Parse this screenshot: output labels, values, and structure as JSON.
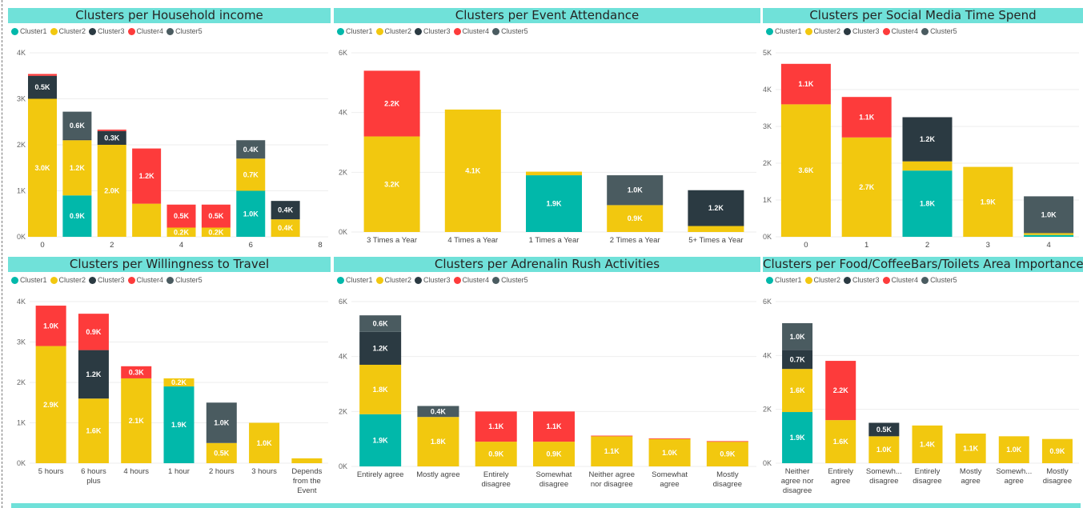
{
  "colors": {
    "Cluster1": "#01b8aa",
    "Cluster2": "#f2c80f",
    "Cluster3": "#2b3a42",
    "Cluster4": "#fd3b3b",
    "Cluster5": "#4a5b60",
    "title_bg": "#70e1d9"
  },
  "chart_data": [
    {
      "title": "Clusters per Household income",
      "type": "bar",
      "x_axis": "numeric",
      "categories": [
        0,
        1,
        2,
        3,
        4,
        5,
        6,
        7
      ],
      "x_ticks": [
        0,
        2,
        4,
        6,
        8
      ],
      "xlim": [
        0,
        8
      ],
      "ylim": [
        0,
        4000
      ],
      "y_ticks": [
        0,
        1000,
        2000,
        3000,
        4000
      ],
      "y_tick_labels": [
        "0K",
        "1K",
        "2K",
        "3K",
        "4K"
      ],
      "series": [
        {
          "name": "Cluster1",
          "values": [
            0,
            900,
            0,
            0,
            0,
            0,
            1000,
            0
          ]
        },
        {
          "name": "Cluster2",
          "values": [
            3000,
            1200,
            2000,
            720,
            200,
            200,
            700,
            380
          ]
        },
        {
          "name": "Cluster3",
          "values": [
            500,
            20,
            300,
            0,
            0,
            0,
            0,
            400
          ]
        },
        {
          "name": "Cluster4",
          "values": [
            40,
            0,
            30,
            1200,
            500,
            500,
            0,
            0
          ]
        },
        {
          "name": "Cluster5",
          "values": [
            0,
            600,
            0,
            0,
            0,
            0,
            400,
            0
          ]
        }
      ],
      "data_labels": [
        {
          "cat": 0,
          "series": "Cluster2",
          "text": "3.0K"
        },
        {
          "cat": 0,
          "series": "Cluster3",
          "text": "0.5K"
        },
        {
          "cat": 1,
          "series": "Cluster1",
          "text": "0.9K"
        },
        {
          "cat": 1,
          "series": "Cluster2",
          "text": "1.2K"
        },
        {
          "cat": 1,
          "series": "Cluster5",
          "text": "0.6K"
        },
        {
          "cat": 2,
          "series": "Cluster2",
          "text": "2.0K"
        },
        {
          "cat": 2,
          "series": "Cluster3",
          "text": "0.3K"
        },
        {
          "cat": 3,
          "series": "Cluster4",
          "text": "1.2K"
        },
        {
          "cat": 4,
          "series": "Cluster2",
          "text": "0.2K"
        },
        {
          "cat": 4,
          "series": "Cluster4",
          "text": "0.5K"
        },
        {
          "cat": 5,
          "series": "Cluster2",
          "text": "0.2K"
        },
        {
          "cat": 5,
          "series": "Cluster4",
          "text": "0.5K"
        },
        {
          "cat": 6,
          "series": "Cluster1",
          "text": "1.0K"
        },
        {
          "cat": 6,
          "series": "Cluster2",
          "text": "0.7K"
        },
        {
          "cat": 6,
          "series": "Cluster5",
          "text": "0.4K"
        },
        {
          "cat": 7,
          "series": "Cluster2",
          "text": "0.4K"
        },
        {
          "cat": 7,
          "series": "Cluster3",
          "text": "0.4K"
        }
      ]
    },
    {
      "title": "Clusters per Event Attendance",
      "type": "bar",
      "categories": [
        "3 Times a Year",
        "4 Times a Year",
        "1 Times a Year",
        "2 Times a Year",
        "5+ Times a Year"
      ],
      "ylim": [
        0,
        6000
      ],
      "y_ticks": [
        0,
        2000,
        4000,
        6000
      ],
      "y_tick_labels": [
        "0K",
        "2K",
        "4K",
        "6K"
      ],
      "series": [
        {
          "name": "Cluster1",
          "values": [
            0,
            0,
            1900,
            0,
            0
          ]
        },
        {
          "name": "Cluster2",
          "values": [
            3200,
            4100,
            120,
            900,
            200
          ]
        },
        {
          "name": "Cluster3",
          "values": [
            0,
            0,
            0,
            0,
            1200
          ]
        },
        {
          "name": "Cluster4",
          "values": [
            2200,
            0,
            0,
            0,
            0
          ]
        },
        {
          "name": "Cluster5",
          "values": [
            0,
            0,
            0,
            1000,
            0
          ]
        }
      ],
      "data_labels": [
        {
          "cat": 0,
          "series": "Cluster2",
          "text": "3.2K"
        },
        {
          "cat": 0,
          "series": "Cluster4",
          "text": "2.2K"
        },
        {
          "cat": 1,
          "series": "Cluster2",
          "text": "4.1K"
        },
        {
          "cat": 2,
          "series": "Cluster1",
          "text": "1.9K"
        },
        {
          "cat": 3,
          "series": "Cluster2",
          "text": "0.9K"
        },
        {
          "cat": 3,
          "series": "Cluster5",
          "text": "1.0K"
        },
        {
          "cat": 4,
          "series": "Cluster3",
          "text": "1.2K"
        }
      ]
    },
    {
      "title": "Clusters per Social Media Time Spend",
      "type": "bar",
      "categories": [
        "0",
        "1",
        "2",
        "3",
        "4"
      ],
      "ylim": [
        0,
        5000
      ],
      "y_ticks": [
        0,
        1000,
        2000,
        3000,
        4000,
        5000
      ],
      "y_tick_labels": [
        "0K",
        "1K",
        "2K",
        "3K",
        "4K",
        "5K"
      ],
      "series": [
        {
          "name": "Cluster1",
          "values": [
            0,
            0,
            1800,
            0,
            50
          ]
        },
        {
          "name": "Cluster2",
          "values": [
            3600,
            2700,
            250,
            1900,
            50
          ]
        },
        {
          "name": "Cluster3",
          "values": [
            0,
            0,
            1200,
            0,
            0
          ]
        },
        {
          "name": "Cluster4",
          "values": [
            1100,
            1100,
            0,
            0,
            0
          ]
        },
        {
          "name": "Cluster5",
          "values": [
            0,
            0,
            0,
            0,
            1000
          ]
        }
      ],
      "data_labels": [
        {
          "cat": 0,
          "series": "Cluster2",
          "text": "3.6K"
        },
        {
          "cat": 0,
          "series": "Cluster4",
          "text": "1.1K"
        },
        {
          "cat": 1,
          "series": "Cluster2",
          "text": "2.7K"
        },
        {
          "cat": 1,
          "series": "Cluster4",
          "text": "1.1K"
        },
        {
          "cat": 2,
          "series": "Cluster1",
          "text": "1.8K"
        },
        {
          "cat": 2,
          "series": "Cluster3",
          "text": "1.2K"
        },
        {
          "cat": 3,
          "series": "Cluster2",
          "text": "1.9K"
        },
        {
          "cat": 4,
          "series": "Cluster5",
          "text": "1.0K"
        }
      ]
    },
    {
      "title": "Clusters per Willingness to Travel",
      "type": "bar",
      "categories": [
        "5 hours",
        "6 hours plus",
        "4 hours",
        "1 hour",
        "2 hours",
        "3 hours",
        "Depends from the Event"
      ],
      "x_tick_lines": [
        [
          "5 hours"
        ],
        [
          "6 hours",
          "plus"
        ],
        [
          "4 hours"
        ],
        [
          "1 hour"
        ],
        [
          "2 hours"
        ],
        [
          "3 hours"
        ],
        [
          "Depends",
          "from the",
          "Event"
        ]
      ],
      "ylim": [
        0,
        4000
      ],
      "y_ticks": [
        0,
        1000,
        2000,
        3000,
        4000
      ],
      "y_tick_labels": [
        "0K",
        "1K",
        "2K",
        "3K",
        "4K"
      ],
      "series": [
        {
          "name": "Cluster1",
          "values": [
            0,
            0,
            0,
            1900,
            0,
            0,
            0
          ]
        },
        {
          "name": "Cluster2",
          "values": [
            2900,
            1600,
            2100,
            200,
            500,
            1000,
            120
          ]
        },
        {
          "name": "Cluster3",
          "values": [
            0,
            1200,
            0,
            0,
            0,
            0,
            0
          ]
        },
        {
          "name": "Cluster4",
          "values": [
            1000,
            900,
            300,
            0,
            0,
            0,
            0
          ]
        },
        {
          "name": "Cluster5",
          "values": [
            0,
            0,
            0,
            0,
            1000,
            0,
            0
          ]
        }
      ],
      "data_labels": [
        {
          "cat": 0,
          "series": "Cluster2",
          "text": "2.9K"
        },
        {
          "cat": 0,
          "series": "Cluster4",
          "text": "1.0K"
        },
        {
          "cat": 1,
          "series": "Cluster2",
          "text": "1.6K"
        },
        {
          "cat": 1,
          "series": "Cluster3",
          "text": "1.2K"
        },
        {
          "cat": 1,
          "series": "Cluster4",
          "text": "0.9K"
        },
        {
          "cat": 2,
          "series": "Cluster2",
          "text": "2.1K"
        },
        {
          "cat": 2,
          "series": "Cluster4",
          "text": "0.3K"
        },
        {
          "cat": 3,
          "series": "Cluster1",
          "text": "1.9K"
        },
        {
          "cat": 3,
          "series": "Cluster2",
          "text": "0.2K"
        },
        {
          "cat": 4,
          "series": "Cluster2",
          "text": "0.5K"
        },
        {
          "cat": 4,
          "series": "Cluster5",
          "text": "1.0K"
        },
        {
          "cat": 5,
          "series": "Cluster2",
          "text": "1.0K"
        }
      ]
    },
    {
      "title": "Clusters per Adrenalin Rush Activities",
      "type": "bar",
      "categories": [
        "Entirely agree",
        "Mostly agree",
        "Entirely disagree",
        "Somewhat disagree",
        "Neither agree nor disagree",
        "Somewhat agree",
        "Mostly disagree"
      ],
      "x_tick_lines": [
        [
          "Entirely agree"
        ],
        [
          "Mostly agree"
        ],
        [
          "Entirely",
          "disagree"
        ],
        [
          "Somewhat",
          "disagree"
        ],
        [
          "Neither agree",
          "nor disagree"
        ],
        [
          "Somewhat",
          "agree"
        ],
        [
          "Mostly",
          "disagree"
        ]
      ],
      "ylim": [
        0,
        6000
      ],
      "y_ticks": [
        0,
        2000,
        4000,
        6000
      ],
      "y_tick_labels": [
        "0K",
        "2K",
        "4K",
        "6K"
      ],
      "series": [
        {
          "name": "Cluster1",
          "values": [
            1900,
            0,
            0,
            0,
            0,
            0,
            0
          ]
        },
        {
          "name": "Cluster2",
          "values": [
            1800,
            1800,
            900,
            900,
            1100,
            1000,
            900
          ]
        },
        {
          "name": "Cluster3",
          "values": [
            1200,
            0,
            0,
            0,
            0,
            0,
            0
          ]
        },
        {
          "name": "Cluster4",
          "values": [
            0,
            0,
            1100,
            1100,
            20,
            20,
            20
          ]
        },
        {
          "name": "Cluster5",
          "values": [
            600,
            400,
            0,
            0,
            0,
            0,
            0
          ]
        }
      ],
      "data_labels": [
        {
          "cat": 0,
          "series": "Cluster1",
          "text": "1.9K"
        },
        {
          "cat": 0,
          "series": "Cluster2",
          "text": "1.8K"
        },
        {
          "cat": 0,
          "series": "Cluster3",
          "text": "1.2K"
        },
        {
          "cat": 0,
          "series": "Cluster5",
          "text": "0.6K"
        },
        {
          "cat": 1,
          "series": "Cluster2",
          "text": "1.8K"
        },
        {
          "cat": 1,
          "series": "Cluster5",
          "text": "0.4K"
        },
        {
          "cat": 2,
          "series": "Cluster2",
          "text": "0.9K"
        },
        {
          "cat": 2,
          "series": "Cluster4",
          "text": "1.1K"
        },
        {
          "cat": 3,
          "series": "Cluster2",
          "text": "0.9K"
        },
        {
          "cat": 3,
          "series": "Cluster4",
          "text": "1.1K"
        },
        {
          "cat": 4,
          "series": "Cluster2",
          "text": "1.1K"
        },
        {
          "cat": 5,
          "series": "Cluster2",
          "text": "1.0K"
        },
        {
          "cat": 6,
          "series": "Cluster2",
          "text": "0.9K"
        }
      ]
    },
    {
      "title": "Clusters per Food/CoffeeBars/Toilets Area Importance",
      "type": "bar",
      "categories": [
        "Neither agree nor disagree",
        "Entirely agree",
        "Somewh... disagree",
        "Entirely disagree",
        "Mostly agree",
        "Somewh... agree",
        "Mostly disagree"
      ],
      "x_tick_lines": [
        [
          "Neither",
          "agree nor",
          "disagree"
        ],
        [
          "Entirely",
          "agree"
        ],
        [
          "Somewh...",
          "disagree"
        ],
        [
          "Entirely",
          "disagree"
        ],
        [
          "Mostly",
          "agree"
        ],
        [
          "Somewh...",
          "agree"
        ],
        [
          "Mostly",
          "disagree"
        ]
      ],
      "ylim": [
        0,
        6000
      ],
      "y_ticks": [
        0,
        2000,
        4000,
        6000
      ],
      "y_tick_labels": [
        "0K",
        "2K",
        "4K",
        "6K"
      ],
      "series": [
        {
          "name": "Cluster1",
          "values": [
            1900,
            0,
            0,
            0,
            0,
            0,
            0
          ]
        },
        {
          "name": "Cluster2",
          "values": [
            1600,
            1600,
            1000,
            1400,
            1100,
            1000,
            900
          ]
        },
        {
          "name": "Cluster3",
          "values": [
            700,
            0,
            500,
            0,
            0,
            0,
            0
          ]
        },
        {
          "name": "Cluster4",
          "values": [
            0,
            2200,
            0,
            0,
            0,
            0,
            0
          ]
        },
        {
          "name": "Cluster5",
          "values": [
            1000,
            0,
            0,
            0,
            0,
            0,
            0
          ]
        }
      ],
      "data_labels": [
        {
          "cat": 0,
          "series": "Cluster1",
          "text": "1.9K"
        },
        {
          "cat": 0,
          "series": "Cluster2",
          "text": "1.6K"
        },
        {
          "cat": 0,
          "series": "Cluster3",
          "text": "0.7K"
        },
        {
          "cat": 0,
          "series": "Cluster5",
          "text": "1.0K"
        },
        {
          "cat": 1,
          "series": "Cluster2",
          "text": "1.6K"
        },
        {
          "cat": 1,
          "series": "Cluster4",
          "text": "2.2K"
        },
        {
          "cat": 2,
          "series": "Cluster2",
          "text": "1.0K"
        },
        {
          "cat": 2,
          "series": "Cluster3",
          "text": "0.5K"
        },
        {
          "cat": 3,
          "series": "Cluster2",
          "text": "1.4K"
        },
        {
          "cat": 4,
          "series": "Cluster2",
          "text": "1.1K"
        },
        {
          "cat": 5,
          "series": "Cluster2",
          "text": "1.0K"
        },
        {
          "cat": 6,
          "series": "Cluster2",
          "text": "0.9K"
        }
      ]
    }
  ]
}
